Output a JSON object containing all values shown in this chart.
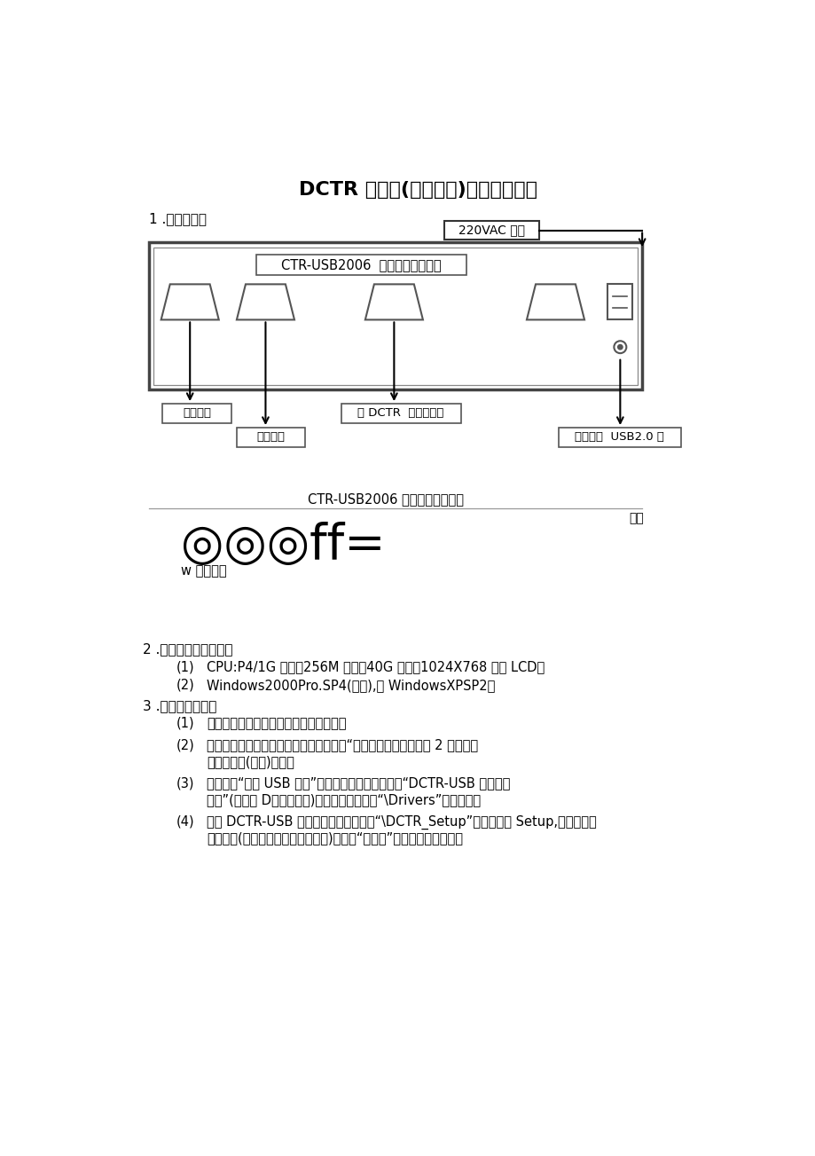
{
  "title": "DCTR 计时仪(笔记本式)安装使用指南",
  "section1_label": "1 .系统连接图",
  "power_label": "220VAC 输入",
  "back_panel_label": "CTR-USB2006  数据采集器后面板",
  "connector_labels": [
    "接传感器",
    "接采集器",
    "接 DCTR  数字摄像机",
    "接笔记本  USB2.0 口"
  ],
  "front_panel_label": "CTR-USB2006 数据采集器前面板",
  "power_right_label": "电源",
  "display_text": "◎◎◎ff=",
  "run_label": "w 运行计时",
  "section2_label": "2 .笔记本电脑系统要求",
  "req1": "CPU:P4/1G 以上，256M 内存，40G 硬盘，1024X768 彩色 LCD。",
  "req2": "Windows2000Pro.SP4(推荐),或 WindowsXPSP2。",
  "section3_label": "3 .软件安装步骤：",
  "step1": "按上图连接系统各部件，并固定好插头。",
  "step2a": "笔记本电脑开机，系统启动结束后，打开“数据采集器电源，大约 2 秒钟后，",
  "step2b": "运行指示灯(红色)闪动。",
  "step3a": "系统提示“发现 USB 设备”，需安装驱动程序。插入“DCTR-USB 计时仪安",
  "step3b": "装盘”(在硬盘 D：中有备份)，驱动程序在光盘“\\Drivers”子目录下。",
  "step4a": "安装 DCTR-USB 计时仪程序；运行光盘“\\DCTR_Setup”子目录下的 Setup,安装时不用",
  "step4b": "修改参数(序列号为任意字母或数字)，只按“下一步”直到安装完成即可。",
  "bg_color": "#ffffff",
  "text_color": "#000000",
  "box_color": "#555555"
}
